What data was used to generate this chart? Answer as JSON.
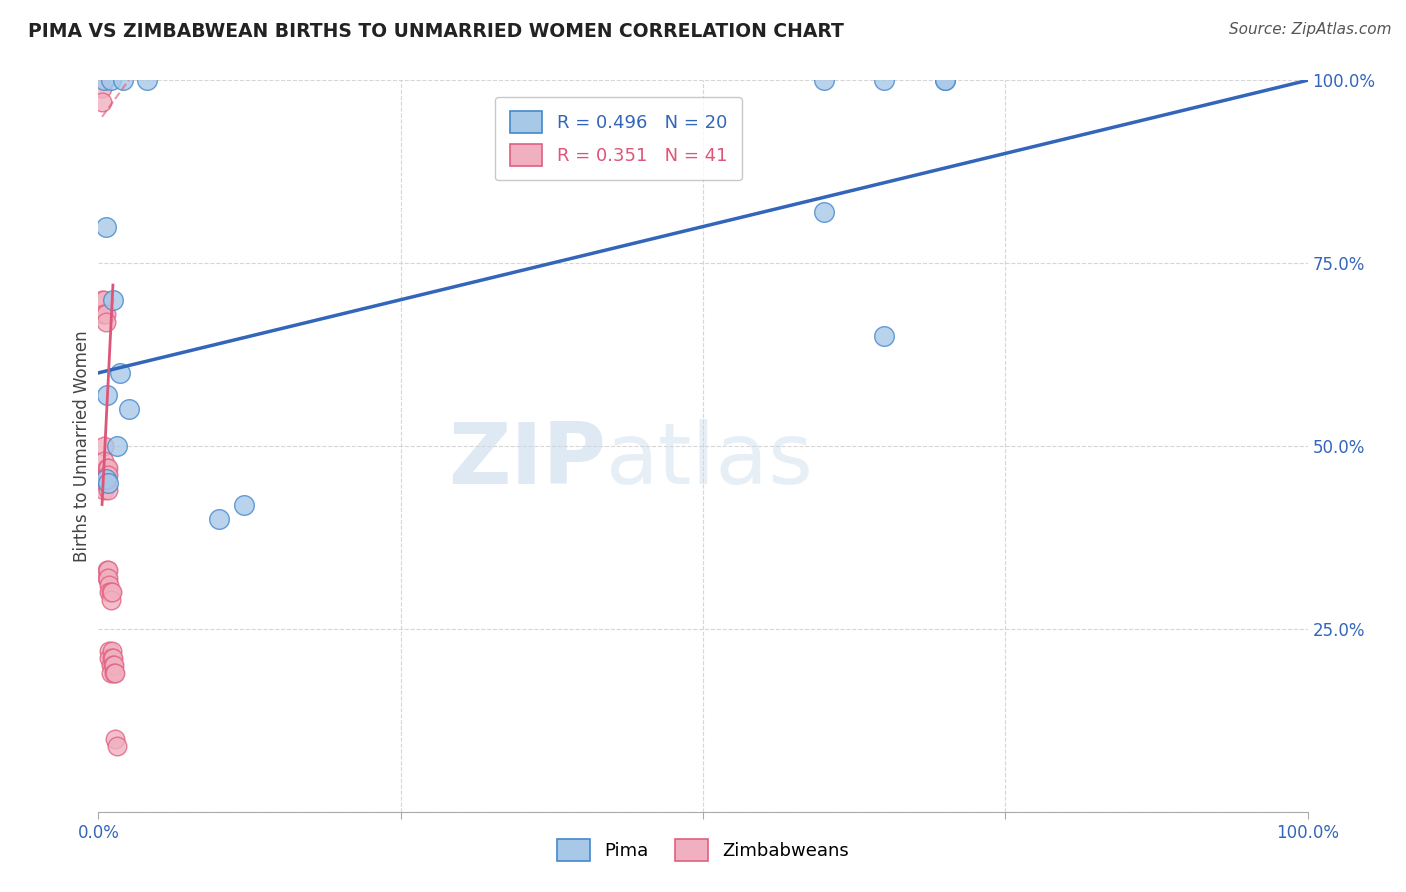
{
  "title": "PIMA VS ZIMBABWEAN BIRTHS TO UNMARRIED WOMEN CORRELATION CHART",
  "source": "Source: ZipAtlas.com",
  "ylabel": "Births to Unmarried Women",
  "watermark_zip": "ZIP",
  "watermark_atlas": "atlas",
  "xlim": [
    0.0,
    1.0
  ],
  "ylim": [
    0.0,
    1.0
  ],
  "xticks": [
    0.0,
    0.25,
    0.5,
    0.75,
    1.0
  ],
  "yticks": [
    0.0,
    0.25,
    0.5,
    0.75,
    1.0
  ],
  "xticklabels": [
    "0.0%",
    "",
    "",
    "",
    "100.0%"
  ],
  "yticklabels_right": [
    "",
    "25.0%",
    "50.0%",
    "75.0%",
    "100.0%"
  ],
  "blue_R": 0.496,
  "blue_N": 20,
  "pink_R": 0.351,
  "pink_N": 41,
  "blue_color": "#a8c8e8",
  "pink_color": "#f0b0c0",
  "blue_edge_color": "#4488cc",
  "pink_edge_color": "#e06080",
  "blue_line_color": "#3366bb",
  "pink_line_color": "#dd5577",
  "grid_color": "#cccccc",
  "blue_points_x": [
    0.005,
    0.01,
    0.02,
    0.04,
    0.6,
    0.65,
    0.7,
    0.006,
    0.012,
    0.018,
    0.6,
    0.65,
    0.7,
    0.007,
    0.025,
    0.1,
    0.12,
    0.006,
    0.008,
    0.015
  ],
  "blue_points_y": [
    1.0,
    1.0,
    1.0,
    1.0,
    1.0,
    1.0,
    1.0,
    0.8,
    0.7,
    0.6,
    0.82,
    0.65,
    1.0,
    0.57,
    0.55,
    0.4,
    0.42,
    0.455,
    0.45,
    0.5
  ],
  "pink_points_x": [
    0.003,
    0.003,
    0.003,
    0.003,
    0.005,
    0.005,
    0.005,
    0.005,
    0.005,
    0.005,
    0.006,
    0.006,
    0.006,
    0.006,
    0.007,
    0.007,
    0.007,
    0.007,
    0.008,
    0.008,
    0.008,
    0.008,
    0.008,
    0.009,
    0.009,
    0.009,
    0.009,
    0.01,
    0.01,
    0.01,
    0.01,
    0.011,
    0.011,
    0.011,
    0.012,
    0.012,
    0.013,
    0.013,
    0.014,
    0.014,
    0.015
  ],
  "pink_points_y": [
    0.99,
    0.97,
    0.7,
    0.68,
    0.7,
    0.68,
    0.5,
    0.48,
    0.45,
    0.44,
    0.68,
    0.67,
    0.46,
    0.45,
    0.47,
    0.46,
    0.33,
    0.32,
    0.47,
    0.46,
    0.44,
    0.33,
    0.32,
    0.31,
    0.3,
    0.22,
    0.21,
    0.3,
    0.29,
    0.2,
    0.19,
    0.3,
    0.22,
    0.21,
    0.21,
    0.2,
    0.2,
    0.19,
    0.19,
    0.1,
    0.09
  ],
  "blue_line_x": [
    0.0,
    1.0
  ],
  "blue_line_y": [
    0.6,
    1.0
  ],
  "pink_solid_line_x": [
    0.003,
    0.012
  ],
  "pink_solid_line_y": [
    0.42,
    0.72
  ],
  "pink_dash_line_x": [
    0.003,
    0.025
  ],
  "pink_dash_line_y": [
    0.95,
    1.0
  ]
}
